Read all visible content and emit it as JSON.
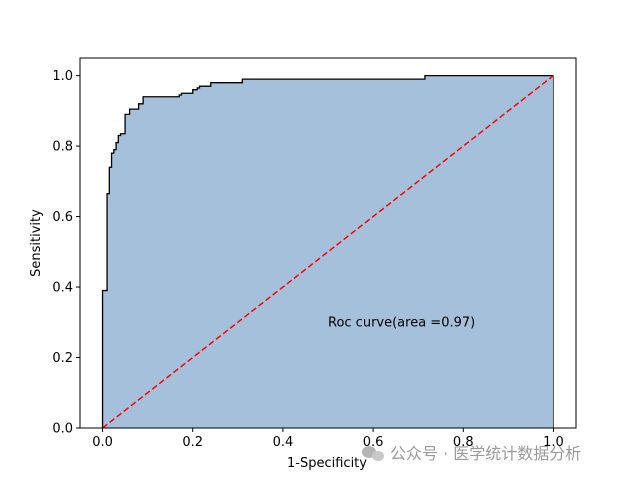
{
  "chart_data": {
    "type": "area",
    "title": "",
    "xlabel": "1-Specificity",
    "ylabel": "Sensitivity",
    "xlim": [
      -0.05,
      1.05
    ],
    "ylim": [
      0.0,
      1.05
    ],
    "xticks": [
      "0.0",
      "0.2",
      "0.4",
      "0.6",
      "0.8",
      "1.0"
    ],
    "yticks": [
      "0.0",
      "0.2",
      "0.4",
      "0.6",
      "0.8",
      "1.0"
    ],
    "grid": false,
    "series": [
      {
        "kind": "roc-curve",
        "line_color": "#000000",
        "fill_color": "#a5c0da",
        "points": [
          [
            0.0,
            0.0
          ],
          [
            0.0,
            0.39
          ],
          [
            0.01,
            0.39
          ],
          [
            0.01,
            0.665
          ],
          [
            0.015,
            0.665
          ],
          [
            0.015,
            0.74
          ],
          [
            0.02,
            0.74
          ],
          [
            0.02,
            0.78
          ],
          [
            0.025,
            0.78
          ],
          [
            0.025,
            0.79
          ],
          [
            0.03,
            0.79
          ],
          [
            0.03,
            0.81
          ],
          [
            0.035,
            0.81
          ],
          [
            0.035,
            0.83
          ],
          [
            0.04,
            0.83
          ],
          [
            0.04,
            0.835
          ],
          [
            0.05,
            0.835
          ],
          [
            0.05,
            0.89
          ],
          [
            0.06,
            0.89
          ],
          [
            0.06,
            0.905
          ],
          [
            0.08,
            0.905
          ],
          [
            0.08,
            0.92
          ],
          [
            0.09,
            0.92
          ],
          [
            0.09,
            0.94
          ],
          [
            0.17,
            0.94
          ],
          [
            0.17,
            0.945
          ],
          [
            0.175,
            0.945
          ],
          [
            0.175,
            0.95
          ],
          [
            0.2,
            0.95
          ],
          [
            0.2,
            0.96
          ],
          [
            0.21,
            0.96
          ],
          [
            0.21,
            0.965
          ],
          [
            0.215,
            0.965
          ],
          [
            0.215,
            0.97
          ],
          [
            0.24,
            0.97
          ],
          [
            0.24,
            0.98
          ],
          [
            0.31,
            0.98
          ],
          [
            0.31,
            0.99
          ],
          [
            0.715,
            0.99
          ],
          [
            0.715,
            1.0
          ],
          [
            1.0,
            1.0
          ]
        ]
      },
      {
        "kind": "chance-line",
        "line_color": "#ff0000",
        "dashed": true,
        "points": [
          [
            0.0,
            0.0
          ],
          [
            1.0,
            1.0
          ]
        ]
      }
    ],
    "annotations": [
      {
        "text": "Roc curve(area =0.97)",
        "x": 0.5,
        "y": 0.3
      }
    ]
  },
  "watermark": {
    "text": "公众号 · 医学统计数据分析",
    "icon": "wechat-icon"
  }
}
